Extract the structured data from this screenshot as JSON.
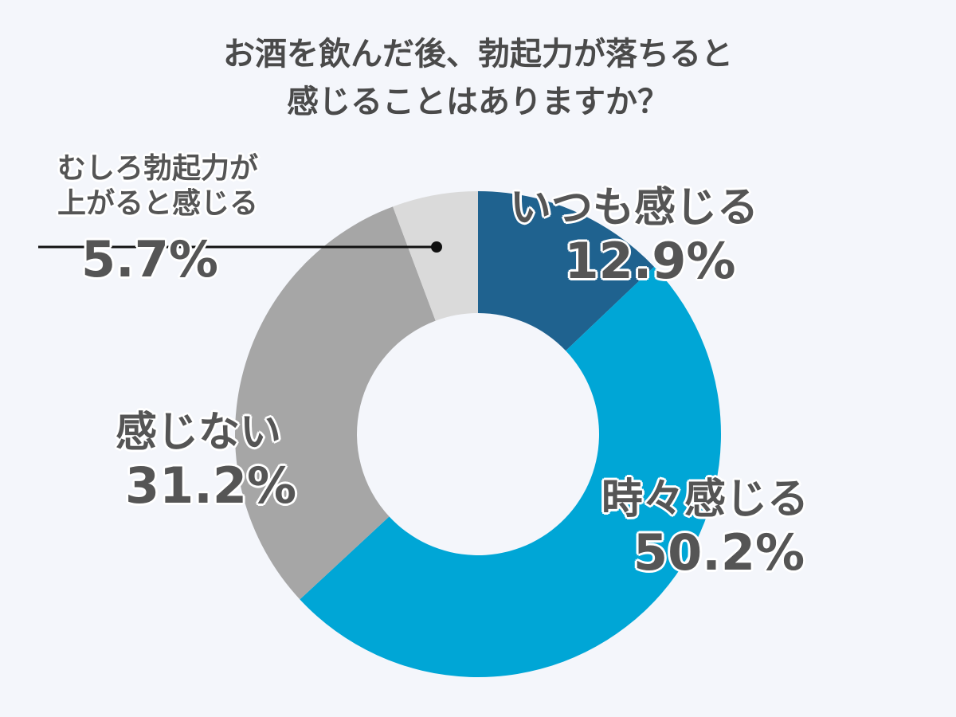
{
  "title": {
    "line1": "お酒を飲んだ後、勃起力が落ちると",
    "line2": "感じることはありますか？"
  },
  "labels": {
    "always": {
      "name": "いつも感じる",
      "pct": "12.9%"
    },
    "sometimes": {
      "name": "時々感じる",
      "pct": "50.2%"
    },
    "never": {
      "name": "感じない",
      "pct": "31.2%"
    },
    "rather_up": {
      "name_line1": "むしろ勃起力が",
      "name_line2": "上がると感じる",
      "pct": "5.7%"
    }
  },
  "chart_data": {
    "type": "pie",
    "variant": "donut",
    "title": "お酒を飲んだ後、勃起力が落ちると感じることはありますか？",
    "categories": [
      "いつも感じる",
      "時々感じる",
      "感じない",
      "むしろ勃起力が上がると感じる"
    ],
    "values": [
      12.9,
      50.2,
      31.2,
      5.7
    ],
    "unit": "%",
    "colors": [
      "#1f628f",
      "#00a6d6",
      "#a6a6a6",
      "#dadada"
    ],
    "legend": "none"
  }
}
